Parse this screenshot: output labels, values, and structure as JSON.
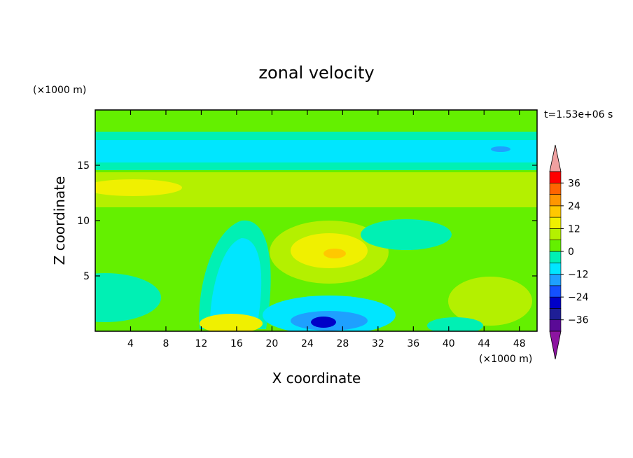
{
  "chart_data": {
    "type": "heatmap",
    "title": "zonal velocity",
    "xlabel": "X coordinate",
    "ylabel": "Z coordinate",
    "x_unit": "(×1000 m)",
    "y_unit": "(×1000 m)",
    "time_label": "t=1.53e+06 s",
    "xlim": [
      0,
      50
    ],
    "ylim": [
      0,
      20
    ],
    "x_ticks": [
      "4",
      "8",
      "12",
      "16",
      "20",
      "24",
      "28",
      "32",
      "36",
      "40",
      "44",
      "48"
    ],
    "y_ticks": [
      "5",
      "10",
      "15"
    ],
    "colorbar": {
      "range": [
        -42,
        42
      ],
      "step": 6,
      "tick_labels": [
        "36",
        "24",
        "12",
        "0",
        "−12",
        "−24",
        "−36"
      ],
      "colors": [
        "#5a0a96",
        "#1e1e96",
        "#0000c8",
        "#1450ff",
        "#1ea0ff",
        "#00e6ff",
        "#00f0b4",
        "#64f000",
        "#b4f000",
        "#f0f000",
        "#ffc800",
        "#ff9600",
        "#ff6400",
        "#ff0000"
      ],
      "overflow_low_color": "#8c14a0",
      "overflow_high_color": "#f0a0a0"
    },
    "features": [
      {
        "x": 14,
        "z": 6,
        "value": -12
      },
      {
        "x": 25,
        "z": 7,
        "value": 9
      },
      {
        "x": 27,
        "z": 1,
        "value": -24
      },
      {
        "x": 40,
        "z": 16.5,
        "value": -12
      },
      {
        "x": 8,
        "z": 13,
        "value": 9
      }
    ]
  }
}
